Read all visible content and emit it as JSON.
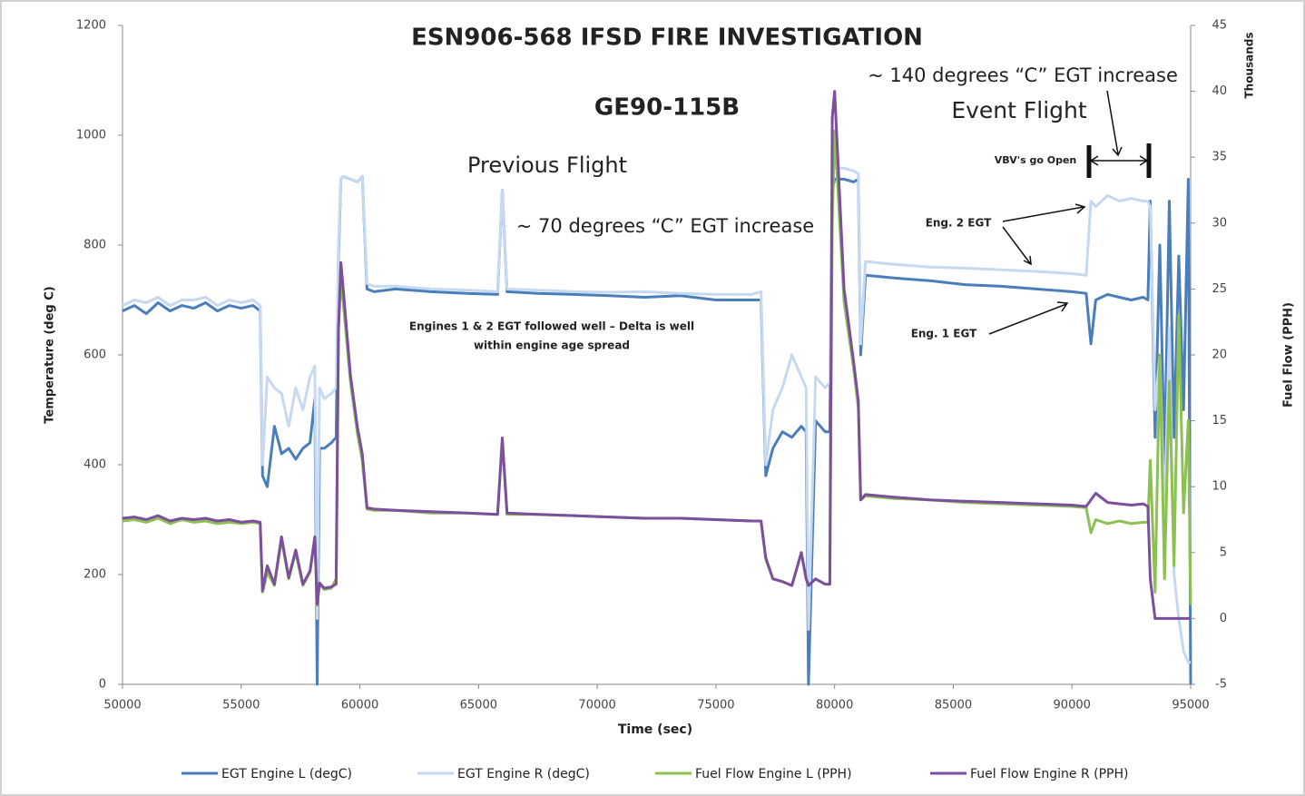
{
  "chart_data": {
    "type": "line",
    "title": "ESN906-568 IFSD FIRE INVESTIGATION",
    "subtitle": "GE90-115B",
    "x_label": "Time (sec)",
    "y_label": "Temperature (deg C)",
    "y2_label": "Fuel Flow (PPH)",
    "y2_unit_label": "Thousands",
    "annotations": [
      "Previous Flight",
      "~ 70 degrees “C” EGT increase",
      "Engines 1 & 2 EGT followed well – Delta is well",
      "within engine age spread",
      "~ 140 degrees “C” EGT increase",
      "Event Flight",
      "VBV's go Open",
      "Eng. 2 EGT",
      "Eng. 1 EGT"
    ],
    "xlim": [
      50000,
      95000
    ],
    "xticks": [
      50000,
      55000,
      60000,
      65000,
      70000,
      75000,
      80000,
      85000,
      90000,
      95000
    ],
    "ylim": [
      0,
      1200
    ],
    "yticks": [
      0,
      200,
      400,
      600,
      800,
      1000,
      1200
    ],
    "y2lim": [
      -5,
      45
    ],
    "y2ticks": [
      -5,
      0,
      5,
      10,
      15,
      20,
      25,
      30,
      35,
      40,
      45
    ],
    "grid": false,
    "legend": "bottom",
    "x": [
      50000,
      50500,
      51000,
      51500,
      52000,
      52500,
      53000,
      53500,
      54000,
      54500,
      55000,
      55500,
      55800,
      55900,
      56100,
      56400,
      56700,
      57000,
      57300,
      57600,
      57900,
      58100,
      58200,
      58300,
      58500,
      58800,
      59000,
      59100,
      59200,
      59300,
      59600,
      59900,
      60100,
      60300,
      60600,
      61500,
      63000,
      64500,
      65800,
      66000,
      66200,
      67500,
      69000,
      70500,
      72000,
      73500,
      75000,
      76500,
      76900,
      77100,
      77400,
      77800,
      78200,
      78600,
      78800,
      78900,
      79200,
      79600,
      79800,
      79900,
      80000,
      80400,
      80800,
      81000,
      81100,
      81300,
      82500,
      84000,
      85500,
      87000,
      88500,
      90000,
      90600,
      90800,
      91000,
      91500,
      92000,
      92500,
      93000,
      93200,
      93300,
      93500,
      93700,
      93900,
      94100,
      94300,
      94500,
      94700,
      94900,
      95000
    ],
    "series": [
      {
        "name": "EGT Engine L (degC)",
        "color": "#4a7ebb",
        "values": [
          680,
          690,
          675,
          695,
          680,
          690,
          685,
          695,
          680,
          690,
          685,
          690,
          680,
          380,
          360,
          470,
          420,
          430,
          410,
          430,
          440,
          520,
          0,
          430,
          430,
          440,
          450,
          780,
          920,
          925,
          920,
          915,
          925,
          720,
          715,
          720,
          715,
          712,
          710,
          900,
          715,
          712,
          710,
          708,
          705,
          708,
          700,
          700,
          700,
          380,
          430,
          460,
          450,
          470,
          460,
          0,
          480,
          460,
          460,
          900,
          920,
          920,
          915,
          920,
          600,
          745,
          740,
          735,
          728,
          725,
          720,
          715,
          712,
          620,
          700,
          710,
          705,
          700,
          705,
          700,
          880,
          450,
          800,
          400,
          880,
          450,
          780,
          500,
          920,
          0
        ]
      },
      {
        "name": "EGT Engine R (degC)",
        "color": "#c6d9f1",
        "values": [
          690,
          700,
          695,
          705,
          690,
          700,
          700,
          705,
          690,
          700,
          695,
          700,
          690,
          400,
          560,
          540,
          530,
          470,
          540,
          500,
          560,
          580,
          120,
          540,
          520,
          530,
          540,
          800,
          920,
          925,
          920,
          915,
          925,
          730,
          725,
          725,
          720,
          718,
          715,
          900,
          720,
          718,
          715,
          714,
          715,
          712,
          710,
          710,
          715,
          400,
          500,
          540,
          600,
          560,
          540,
          100,
          560,
          540,
          550,
          940,
          940,
          940,
          935,
          930,
          620,
          770,
          765,
          760,
          758,
          755,
          752,
          748,
          745,
          880,
          870,
          890,
          880,
          885,
          880,
          880,
          870,
          500,
          600,
          300,
          650,
          200,
          120,
          60,
          40,
          40
        ]
      },
      {
        "name": "Fuel Flow Engine L (PPH)",
        "color": "#8cc152",
        "axis": "y2",
        "values": [
          7.4,
          7.5,
          7.3,
          7.6,
          7.2,
          7.5,
          7.3,
          7.4,
          7.2,
          7.3,
          7.2,
          7.3,
          7.2,
          2.0,
          3.5,
          2.5,
          6.0,
          3.0,
          5.0,
          2.5,
          3.5,
          6.0,
          1.0,
          2.6,
          2.2,
          2.3,
          3.0,
          22.0,
          25.5,
          24.0,
          18.0,
          14.0,
          12.0,
          8.3,
          8.2,
          8.2,
          8.0,
          8.0,
          7.9,
          13.5,
          7.9,
          7.9,
          7.8,
          7.7,
          7.6,
          7.6,
          7.5,
          7.4,
          7.4,
          4.5,
          3.0,
          2.8,
          2.5,
          5.0,
          3.0,
          2.5,
          3.0,
          2.6,
          2.6,
          30.0,
          37.0,
          24.0,
          19.0,
          16.0,
          9.0,
          9.3,
          9.1,
          9.0,
          8.8,
          8.7,
          8.6,
          8.5,
          8.4,
          6.5,
          7.5,
          7.2,
          7.4,
          7.2,
          7.3,
          7.3,
          12.0,
          2.0,
          20.0,
          3.0,
          18.0,
          4.0,
          23.0,
          8.0,
          15.0,
          1.0
        ]
      },
      {
        "name": "Fuel Flow Engine R (PPH)",
        "color": "#7b4f9d",
        "axis": "y2",
        "values": [
          7.6,
          7.7,
          7.5,
          7.8,
          7.4,
          7.6,
          7.5,
          7.6,
          7.4,
          7.5,
          7.3,
          7.4,
          7.3,
          2.1,
          4.0,
          2.6,
          6.2,
          3.1,
          5.2,
          2.6,
          3.6,
          6.2,
          1.1,
          2.7,
          2.3,
          2.4,
          2.6,
          22.0,
          27.0,
          25.0,
          18.5,
          14.5,
          12.5,
          8.4,
          8.3,
          8.2,
          8.1,
          8.0,
          7.9,
          13.7,
          8.0,
          7.9,
          7.8,
          7.7,
          7.6,
          7.6,
          7.5,
          7.4,
          7.4,
          4.6,
          3.0,
          2.8,
          2.5,
          5.0,
          3.0,
          2.5,
          3.0,
          2.6,
          2.6,
          38.0,
          40.0,
          25.0,
          19.5,
          16.5,
          9.0,
          9.4,
          9.2,
          9.0,
          8.9,
          8.8,
          8.7,
          8.6,
          8.5,
          9.0,
          9.5,
          8.8,
          8.7,
          8.6,
          8.7,
          8.5,
          3.0,
          0,
          0,
          0,
          0,
          0,
          0,
          0,
          0,
          0
        ]
      }
    ]
  }
}
